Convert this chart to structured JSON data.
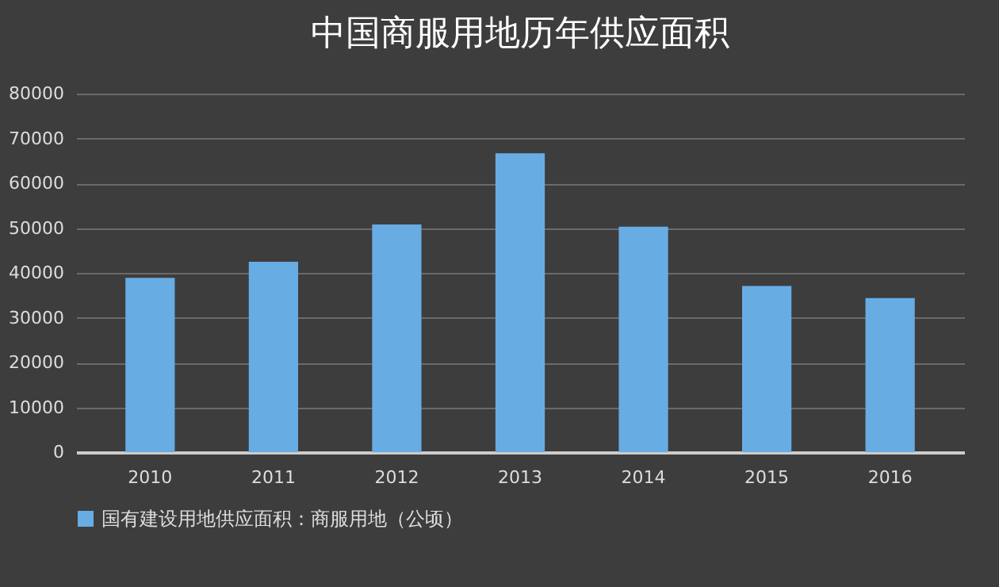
{
  "chart_data": {
    "type": "bar",
    "title": "中国商服用地历年供应面积",
    "categories": [
      "2010",
      "2011",
      "2012",
      "2013",
      "2014",
      "2015",
      "2016"
    ],
    "series": [
      {
        "name": "国有建设用地供应面积：商服用地（公顷）",
        "color": "#68ace4",
        "values": [
          38900,
          42500,
          50800,
          66700,
          50300,
          37100,
          34400
        ]
      }
    ],
    "ylim": [
      0,
      80000
    ],
    "yticks": [
      0,
      10000,
      20000,
      30000,
      40000,
      50000,
      60000,
      70000,
      80000
    ],
    "grid": "y",
    "legend": "bottom"
  }
}
